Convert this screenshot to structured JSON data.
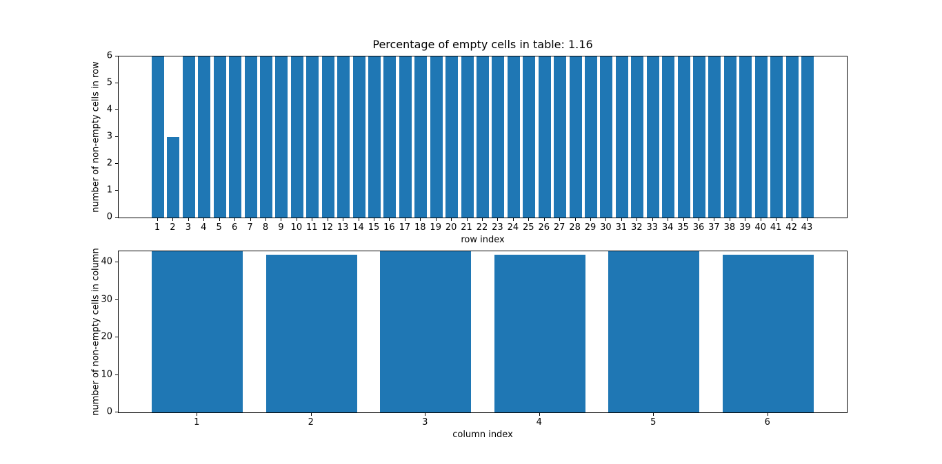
{
  "figure": {
    "background": "#ffffff",
    "bar_color": "#1f77b4",
    "spine_color": "#000000"
  },
  "chart_data": [
    {
      "type": "bar",
      "title": "Percentage of empty cells in table: 1.16",
      "xlabel": "row index",
      "ylabel": "number of non-empty cells in row",
      "categories": [
        1,
        2,
        3,
        4,
        5,
        6,
        7,
        8,
        9,
        10,
        11,
        12,
        13,
        14,
        15,
        16,
        17,
        18,
        19,
        20,
        21,
        22,
        23,
        24,
        25,
        26,
        27,
        28,
        29,
        30,
        31,
        32,
        33,
        34,
        35,
        36,
        37,
        38,
        39,
        40,
        41,
        42,
        43
      ],
      "values": [
        6,
        3,
        6,
        6,
        6,
        6,
        6,
        6,
        6,
        6,
        6,
        6,
        6,
        6,
        6,
        6,
        6,
        6,
        6,
        6,
        6,
        6,
        6,
        6,
        6,
        6,
        6,
        6,
        6,
        6,
        6,
        6,
        6,
        6,
        6,
        6,
        6,
        6,
        6,
        6,
        6,
        6,
        6
      ],
      "ylim": [
        0,
        6
      ],
      "yticks": [
        0,
        1,
        2,
        3,
        4,
        5,
        6
      ],
      "grid": false,
      "legend": "none",
      "bar_width_fraction": 0.8
    },
    {
      "type": "bar",
      "title": "",
      "xlabel": "column index",
      "ylabel": "number of non-empty cells in column",
      "categories": [
        1,
        2,
        3,
        4,
        5,
        6
      ],
      "values": [
        43,
        42,
        43,
        42,
        43,
        42
      ],
      "ylim": [
        0,
        43
      ],
      "yticks": [
        0,
        10,
        20,
        30,
        40
      ],
      "grid": false,
      "legend": "none",
      "bar_width_fraction": 0.8
    }
  ]
}
